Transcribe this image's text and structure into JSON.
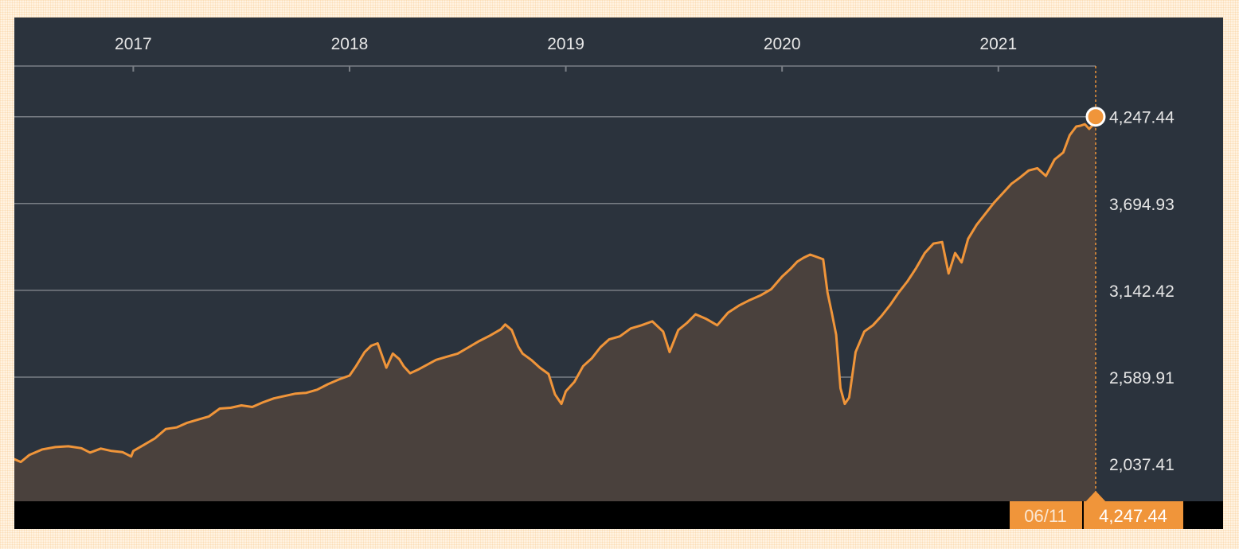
{
  "chart_data": {
    "type": "area",
    "title": "",
    "xlabel": "",
    "ylabel": "",
    "x_ticks": [
      "2017",
      "2018",
      "2019",
      "2020",
      "2021"
    ],
    "y_ticks": [
      "4,247.44",
      "3,694.93",
      "3,142.42",
      "2,589.91",
      "2,037.41"
    ],
    "y_tick_values": [
      4247.44,
      3694.93,
      3142.42,
      2589.91,
      2037.41
    ],
    "x_range": [
      2016.45,
      2021.45
    ],
    "ylim": [
      1800,
      4570
    ],
    "grid": "horizontal",
    "colors": {
      "line": "#f0953a",
      "area": "#4a413d",
      "background": "#2b333d",
      "grid": "#7a7f86",
      "accent": "#f0953a",
      "footer": "#000000"
    },
    "series": [
      {
        "values": [
          [
            2016.45,
            2068
          ],
          [
            2016.48,
            2050
          ],
          [
            2016.52,
            2095
          ],
          [
            2016.58,
            2130
          ],
          [
            2016.64,
            2145
          ],
          [
            2016.7,
            2150
          ],
          [
            2016.76,
            2138
          ],
          [
            2016.8,
            2110
          ],
          [
            2016.85,
            2135
          ],
          [
            2016.9,
            2120
          ],
          [
            2016.95,
            2113
          ],
          [
            2016.99,
            2085
          ],
          [
            2017.0,
            2120
          ],
          [
            2017.05,
            2160
          ],
          [
            2017.1,
            2200
          ],
          [
            2017.15,
            2260
          ],
          [
            2017.2,
            2270
          ],
          [
            2017.25,
            2300
          ],
          [
            2017.3,
            2320
          ],
          [
            2017.35,
            2340
          ],
          [
            2017.4,
            2390
          ],
          [
            2017.45,
            2395
          ],
          [
            2017.5,
            2410
          ],
          [
            2017.55,
            2400
          ],
          [
            2017.6,
            2430
          ],
          [
            2017.65,
            2455
          ],
          [
            2017.7,
            2470
          ],
          [
            2017.75,
            2485
          ],
          [
            2017.8,
            2490
          ],
          [
            2017.85,
            2510
          ],
          [
            2017.9,
            2545
          ],
          [
            2017.95,
            2575
          ],
          [
            2018.0,
            2600
          ],
          [
            2018.03,
            2660
          ],
          [
            2018.07,
            2750
          ],
          [
            2018.1,
            2790
          ],
          [
            2018.13,
            2805
          ],
          [
            2018.17,
            2650
          ],
          [
            2018.2,
            2740
          ],
          [
            2018.23,
            2705
          ],
          [
            2018.25,
            2660
          ],
          [
            2018.28,
            2615
          ],
          [
            2018.32,
            2640
          ],
          [
            2018.36,
            2670
          ],
          [
            2018.4,
            2700
          ],
          [
            2018.45,
            2720
          ],
          [
            2018.5,
            2740
          ],
          [
            2018.55,
            2780
          ],
          [
            2018.6,
            2820
          ],
          [
            2018.65,
            2855
          ],
          [
            2018.7,
            2895
          ],
          [
            2018.72,
            2925
          ],
          [
            2018.75,
            2890
          ],
          [
            2018.78,
            2785
          ],
          [
            2018.8,
            2740
          ],
          [
            2018.84,
            2700
          ],
          [
            2018.88,
            2650
          ],
          [
            2018.92,
            2610
          ],
          [
            2018.95,
            2480
          ],
          [
            2018.98,
            2420
          ],
          [
            2019.0,
            2500
          ],
          [
            2019.04,
            2560
          ],
          [
            2019.08,
            2660
          ],
          [
            2019.12,
            2710
          ],
          [
            2019.16,
            2780
          ],
          [
            2019.2,
            2830
          ],
          [
            2019.25,
            2850
          ],
          [
            2019.3,
            2900
          ],
          [
            2019.35,
            2920
          ],
          [
            2019.4,
            2945
          ],
          [
            2019.45,
            2880
          ],
          [
            2019.48,
            2750
          ],
          [
            2019.52,
            2890
          ],
          [
            2019.56,
            2935
          ],
          [
            2019.6,
            2990
          ],
          [
            2019.65,
            2960
          ],
          [
            2019.7,
            2920
          ],
          [
            2019.75,
            3000
          ],
          [
            2019.8,
            3045
          ],
          [
            2019.85,
            3080
          ],
          [
            2019.9,
            3110
          ],
          [
            2019.95,
            3150
          ],
          [
            2020.0,
            3230
          ],
          [
            2020.04,
            3280
          ],
          [
            2020.07,
            3325
          ],
          [
            2020.1,
            3350
          ],
          [
            2020.13,
            3370
          ],
          [
            2020.16,
            3355
          ],
          [
            2020.19,
            3340
          ],
          [
            2020.21,
            3130
          ],
          [
            2020.23,
            3000
          ],
          [
            2020.25,
            2860
          ],
          [
            2020.27,
            2520
          ],
          [
            2020.29,
            2420
          ],
          [
            2020.31,
            2460
          ],
          [
            2020.34,
            2750
          ],
          [
            2020.38,
            2880
          ],
          [
            2020.42,
            2920
          ],
          [
            2020.46,
            2980
          ],
          [
            2020.5,
            3050
          ],
          [
            2020.54,
            3130
          ],
          [
            2020.58,
            3200
          ],
          [
            2020.62,
            3285
          ],
          [
            2020.66,
            3380
          ],
          [
            2020.7,
            3440
          ],
          [
            2020.74,
            3450
          ],
          [
            2020.77,
            3250
          ],
          [
            2020.8,
            3380
          ],
          [
            2020.83,
            3320
          ],
          [
            2020.86,
            3470
          ],
          [
            2020.9,
            3560
          ],
          [
            2020.94,
            3630
          ],
          [
            2020.98,
            3700
          ],
          [
            2021.02,
            3760
          ],
          [
            2021.06,
            3820
          ],
          [
            2021.1,
            3860
          ],
          [
            2021.14,
            3905
          ],
          [
            2021.18,
            3920
          ],
          [
            2021.22,
            3870
          ],
          [
            2021.26,
            3975
          ],
          [
            2021.3,
            4020
          ],
          [
            2021.33,
            4130
          ],
          [
            2021.36,
            4185
          ],
          [
            2021.38,
            4190
          ],
          [
            2021.4,
            4200
          ],
          [
            2021.42,
            4170
          ],
          [
            2021.44,
            4200
          ],
          [
            2021.45,
            4247.44
          ]
        ]
      }
    ],
    "last_point": {
      "date": "06/11",
      "value": "4,247.44"
    }
  }
}
